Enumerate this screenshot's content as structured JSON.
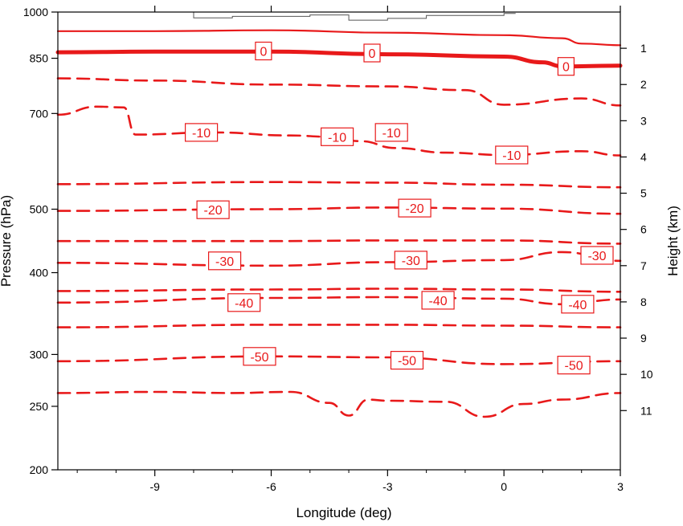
{
  "chart_data": {
    "type": "line",
    "description": "Vertical cross-section contour plot of temperature (deg C) versus longitude and pressure. Dashed contours below 0, thick solid 0 contour, thin solid above 0. Gray step line = terrain.",
    "xlabel": "Longitude (deg)",
    "ylabel_left": "Pressure (hPa)",
    "ylabel_right": "Height (km)",
    "x_range": [
      -11.5,
      3
    ],
    "x_ticks": [
      -9,
      -6,
      -3,
      0,
      3
    ],
    "x_tick_labels": [
      "-9",
      "-6",
      "-3",
      "0",
      "3"
    ],
    "y_left_range_hPa": [
      1000,
      200
    ],
    "y_left_scale": "log",
    "y_left_ticks": [
      1000,
      850,
      700,
      500,
      400,
      300,
      250,
      200
    ],
    "y_left_tick_labels": [
      "1000",
      "850",
      "700",
      "500",
      "400",
      "300",
      "250",
      "200"
    ],
    "y_right_ticks": [
      1,
      2,
      3,
      4,
      5,
      6,
      7,
      8,
      9,
      10,
      11
    ],
    "y_right_tick_labels": [
      "1",
      "2",
      "3",
      "4",
      "5",
      "6",
      "7",
      "8",
      "9",
      "10",
      "11"
    ],
    "colors": {
      "contour": "#e8191a",
      "terrain": "#555555",
      "axis": "#000000"
    },
    "series": [
      {
        "level": -50,
        "style": "dashed",
        "lon": [
          -11.5,
          -9,
          -7,
          -5.5,
          -4.5,
          -4,
          -3.5,
          -3,
          -1.5,
          -0.5,
          0.5,
          1.5,
          3
        ],
        "p": [
          262,
          263,
          262,
          263,
          253,
          242,
          256,
          255,
          254,
          241,
          252,
          256,
          262
        ]
      },
      {
        "level": -50,
        "style": "dashed",
        "lon": [
          -11.5,
          -6,
          -3,
          0,
          3
        ],
        "p": [
          293,
          298,
          297,
          290,
          293
        ]
      },
      {
        "level": -40,
        "style": "dashed",
        "lon": [
          -11.5,
          -6,
          -3,
          0,
          3
        ],
        "p": [
          330,
          333,
          333,
          332,
          330
        ]
      },
      {
        "level": -40,
        "style": "dashed",
        "lon": [
          -11.5,
          -6,
          -3,
          0,
          1.5,
          3
        ],
        "p": [
          360,
          366,
          367,
          365,
          358,
          364
        ]
      },
      {
        "level": -30,
        "style": "dashed",
        "lon": [
          -11.5,
          -6,
          -3,
          0,
          3
        ],
        "p": [
          375,
          377,
          378,
          377,
          374
        ]
      },
      {
        "level": -30,
        "style": "dashed",
        "lon": [
          -11.5,
          -6,
          -3,
          0,
          1.5,
          3
        ],
        "p": [
          414,
          410,
          415,
          418,
          430,
          417
        ]
      },
      {
        "level": -20,
        "style": "dashed",
        "lon": [
          -11.5,
          -6,
          -3,
          0,
          3
        ],
        "p": [
          447,
          447,
          448,
          448,
          443
        ]
      },
      {
        "level": -20,
        "style": "dashed",
        "lon": [
          -11.5,
          -6,
          -3,
          0,
          3
        ],
        "p": [
          497,
          500,
          503,
          501,
          492
        ]
      },
      {
        "level": -20,
        "style": "dashed",
        "lon": [
          -11.5,
          -6,
          -3,
          0,
          3
        ],
        "p": [
          546,
          550,
          549,
          545,
          540
        ]
      },
      {
        "level": -10,
        "style": "dashed",
        "lon": [
          -11.5,
          -10.5,
          -9.8,
          -9.5,
          -7.5,
          -5.5,
          -4.5,
          -3.7,
          -2.8,
          -1.5,
          0,
          2,
          3
        ],
        "p": [
          697,
          717,
          715,
          650,
          655,
          648,
          645,
          635,
          620,
          610,
          605,
          613,
          604
        ]
      },
      {
        "level": -10,
        "style": "dashed",
        "lon": [
          -11.5,
          -9,
          -6,
          -3,
          -1,
          0,
          2,
          3
        ],
        "p": [
          792,
          786,
          775,
          770,
          760,
          722,
          738,
          720
        ]
      },
      {
        "level": 0,
        "style": "thick-solid",
        "lon": [
          -11.5,
          -9,
          -6,
          -3,
          0,
          1,
          1.5,
          3
        ],
        "p": [
          868,
          870,
          870,
          862,
          855,
          838,
          826,
          828
        ]
      },
      {
        "level": 10,
        "style": "solid",
        "lon": [
          -11.5,
          -9,
          -6,
          -3,
          0,
          1.5,
          2,
          3
        ],
        "p": [
          935,
          935,
          938,
          930,
          922,
          912,
          895,
          890
        ]
      }
    ],
    "terrain": {
      "lon": [
        -9.5,
        -8,
        -7,
        -5,
        -4,
        -3,
        -2,
        0
      ],
      "p": [
        1000,
        980,
        985,
        990,
        972,
        978,
        988,
        995
      ]
    },
    "contour_labels": [
      {
        "text": "-50",
        "lon": -6.3,
        "p": 298
      },
      {
        "text": "-50",
        "lon": -2.5,
        "p": 294
      },
      {
        "text": "-50",
        "lon": 1.8,
        "p": 289
      },
      {
        "text": "-40",
        "lon": -6.7,
        "p": 360
      },
      {
        "text": "-40",
        "lon": -1.7,
        "p": 363
      },
      {
        "text": "-40",
        "lon": 1.9,
        "p": 358
      },
      {
        "text": "-30",
        "lon": -7.2,
        "p": 417
      },
      {
        "text": "-30",
        "lon": -2.4,
        "p": 418
      },
      {
        "text": "-30",
        "lon": 2.4,
        "p": 425
      },
      {
        "text": "-20",
        "lon": -7.5,
        "p": 499
      },
      {
        "text": "-20",
        "lon": -2.3,
        "p": 502
      },
      {
        "text": "-10",
        "lon": -7.8,
        "p": 655
      },
      {
        "text": "-10",
        "lon": -4.3,
        "p": 645
      },
      {
        "text": "-10",
        "lon": -2.9,
        "p": 655
      },
      {
        "text": "-10",
        "lon": 0.2,
        "p": 605
      },
      {
        "text": "0",
        "lon": -6.2,
        "p": 872
      },
      {
        "text": "0",
        "lon": -3.4,
        "p": 866
      },
      {
        "text": "0",
        "lon": 1.6,
        "p": 826
      }
    ]
  }
}
